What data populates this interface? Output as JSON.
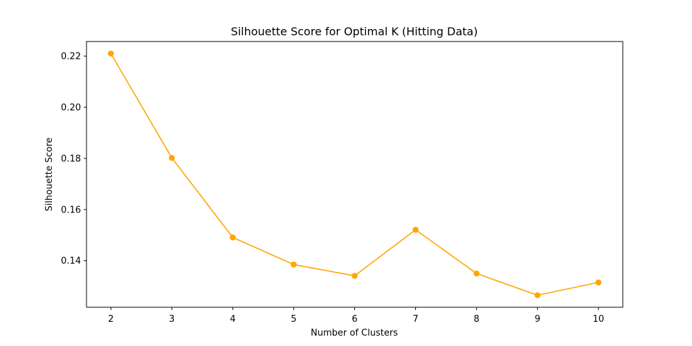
{
  "chart_data": {
    "type": "line",
    "title": "Silhouette Score for Optimal K (Hitting Data)",
    "xlabel": "Number of Clusters",
    "ylabel": "Silhouette Score",
    "x": [
      2,
      3,
      4,
      5,
      6,
      7,
      8,
      9,
      10
    ],
    "series": [
      {
        "values": [
          0.221,
          0.1802,
          0.1491,
          0.1385,
          0.1341,
          0.1521,
          0.135,
          0.1265,
          0.1315
        ],
        "color": "#ffa500",
        "marker": "circle"
      }
    ],
    "xticks": [
      "2",
      "3",
      "4",
      "5",
      "6",
      "7",
      "8",
      "9",
      "10"
    ],
    "yticks": [
      "0.14",
      "0.16",
      "0.18",
      "0.20",
      "0.22"
    ],
    "ytick_values": [
      0.14,
      0.16,
      0.18,
      0.2,
      0.22
    ],
    "xlim": [
      1.6,
      10.4
    ],
    "ylim": [
      0.1218,
      0.2257
    ],
    "grid": false,
    "legend": "none"
  }
}
